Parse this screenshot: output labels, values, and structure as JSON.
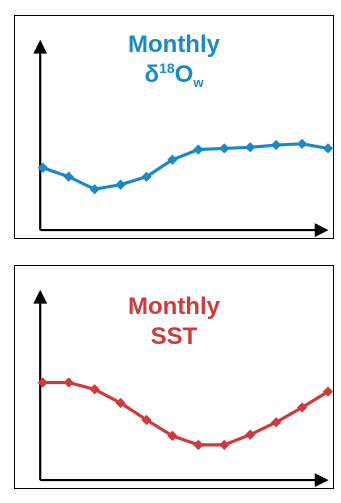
{
  "chart_data": [
    {
      "type": "line",
      "title": {
        "line1": "Monthly",
        "symbol": "δ",
        "superscript": "18",
        "element": "O",
        "subscript": "w"
      },
      "xlabel": "",
      "ylabel": "",
      "x": [
        1,
        2,
        3,
        4,
        5,
        6,
        7,
        8,
        9,
        10,
        11,
        12
      ],
      "values": [
        0.55,
        0.47,
        0.36,
        0.4,
        0.47,
        0.62,
        0.71,
        0.72,
        0.73,
        0.75,
        0.76,
        0.72
      ],
      "xlim": [
        0.9,
        12.1
      ],
      "ylim": [
        0,
        1.8
      ],
      "color": "#1a8ac7",
      "grid": false,
      "legend": "none"
    },
    {
      "type": "line",
      "title": {
        "line1": "Monthly",
        "line2": "SST"
      },
      "xlabel": "",
      "ylabel": "",
      "x": [
        1,
        2,
        3,
        4,
        5,
        6,
        7,
        8,
        9,
        10,
        11,
        12
      ],
      "values": [
        0.86,
        0.86,
        0.8,
        0.68,
        0.53,
        0.39,
        0.31,
        0.31,
        0.4,
        0.51,
        0.64,
        0.78
      ],
      "xlim": [
        0.9,
        12.1
      ],
      "ylim": [
        0,
        1.8
      ],
      "color": "#d03a3c",
      "grid": false,
      "legend": "none"
    }
  ]
}
